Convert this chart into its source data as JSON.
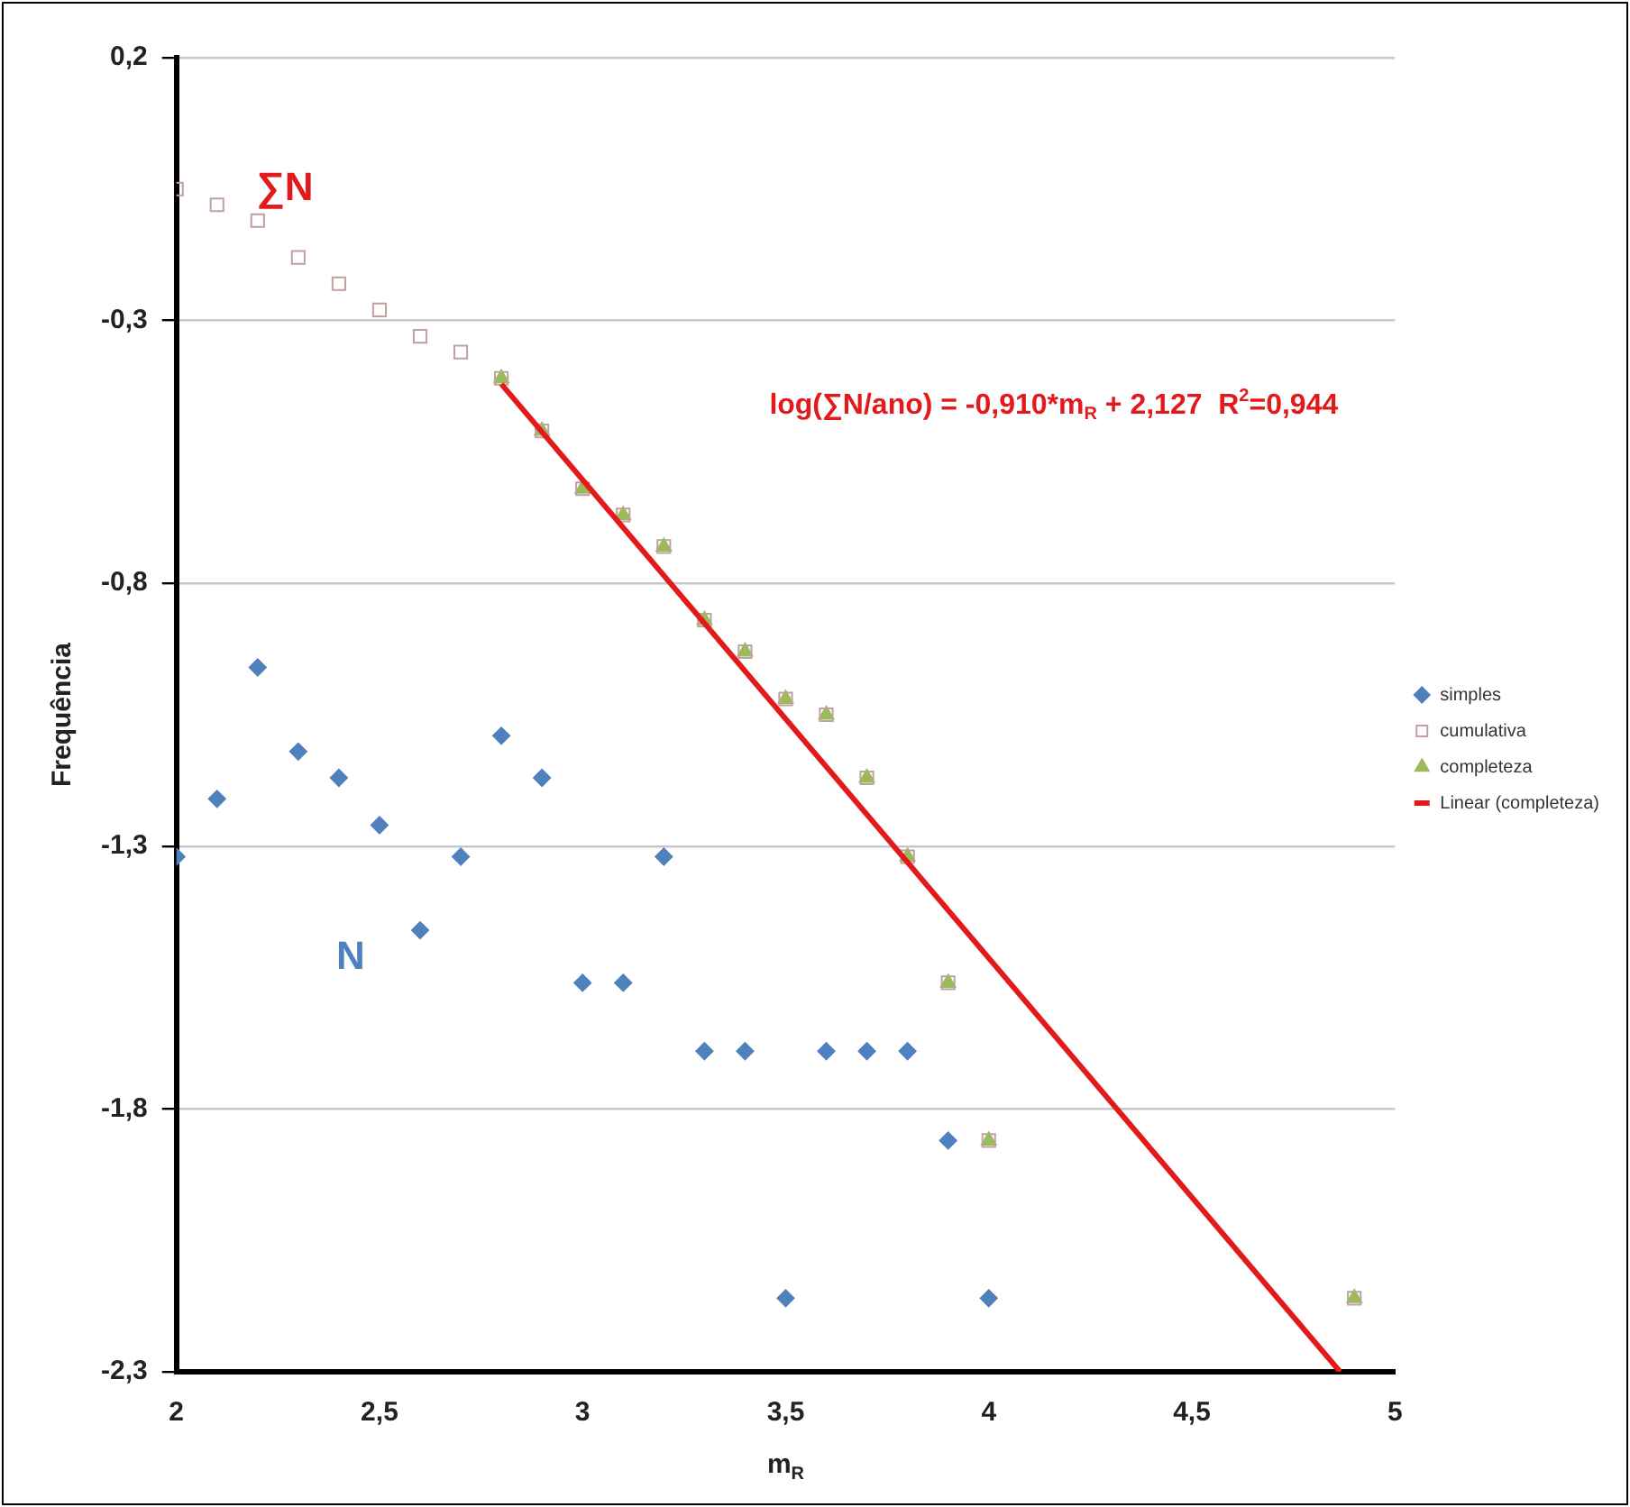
{
  "chart_data": {
    "type": "scatter",
    "xlabel": "m$_{R}$",
    "ylabel": "Frequência",
    "xlim": [
      2,
      5
    ],
    "xticks": [
      2,
      {
        "value": 2.5,
        "label": "2,5"
      },
      3,
      {
        "value": 3.5,
        "label": "3,5"
      },
      4,
      {
        "value": 4.5,
        "label": "4,5"
      },
      5
    ],
    "ylim": [
      -2.3,
      0.2
    ],
    "yticks": [
      {
        "value": 0.2,
        "label": "0,2"
      },
      {
        "value": -0.3,
        "label": "-0,3"
      },
      {
        "value": -0.8,
        "label": "-0,8"
      },
      {
        "value": -1.3,
        "label": "-1,3"
      },
      {
        "value": -1.8,
        "label": "-1,8"
      },
      {
        "value": -2.3,
        "label": "-2,3"
      }
    ],
    "grid": "y",
    "legend": "right",
    "series": [
      {
        "name": "simples",
        "marker": "diamond",
        "color": "#4f81bd",
        "x": [
          2,
          2.1,
          2.2,
          2.3,
          2.4,
          2.5,
          2.6,
          2.7,
          2.8,
          2.9,
          3,
          3.1,
          3.2,
          3.3,
          3.4,
          3.5,
          3.6,
          3.7,
          3.8,
          3.9,
          4
        ],
        "values": [
          -1.32,
          -1.21,
          -0.96,
          -1.12,
          -1.17,
          -1.26,
          -1.46,
          -1.32,
          -1.09,
          -1.17,
          -1.56,
          -1.56,
          -1.32,
          -1.69,
          -1.69,
          -2.16,
          -1.69,
          -1.69,
          -1.69,
          -1.86,
          -2.16
        ]
      },
      {
        "name": "cumulativa",
        "marker": "square",
        "color": "#c0a0a0",
        "x": [
          2,
          2.1,
          2.2,
          2.3,
          2.4,
          2.5,
          2.6,
          2.7,
          2.8,
          2.9,
          3,
          3.1,
          3.2,
          3.3,
          3.4,
          3.5,
          3.6,
          3.7,
          3.8,
          3.9,
          4,
          4.9
        ],
        "values": [
          -0.05,
          -0.08,
          -0.11,
          -0.18,
          -0.23,
          -0.28,
          -0.33,
          -0.36,
          -0.41,
          -0.51,
          -0.62,
          -0.67,
          -0.73,
          -0.87,
          -0.93,
          -1.02,
          -1.05,
          -1.17,
          -1.32,
          -1.56,
          -1.86,
          -2.16
        ]
      },
      {
        "name": "completeza",
        "marker": "triangle",
        "color": "#9bbb59",
        "x": [
          2.8,
          2.9,
          3,
          3.1,
          3.2,
          3.3,
          3.4,
          3.5,
          3.6,
          3.7,
          3.8,
          3.9,
          4,
          4.9
        ],
        "values": [
          -0.41,
          -0.51,
          -0.62,
          -0.67,
          -0.73,
          -0.87,
          -0.93,
          -1.02,
          -1.05,
          -1.17,
          -1.32,
          -1.56,
          -1.86,
          -2.16
        ]
      },
      {
        "name": "Linear (completeza)",
        "type": "line",
        "line_style": "solid",
        "marker": "none",
        "color": "#e31a1c",
        "x": [
          2.8,
          4.865
        ],
        "values": [
          -0.421,
          -2.3
        ]
      }
    ],
    "annotations": [
      "∑N",
      "N",
      "log(∑N/ano) = -0,910*m$_{R}$ + 2,127  R$^{2}$=0,944"
    ]
  }
}
